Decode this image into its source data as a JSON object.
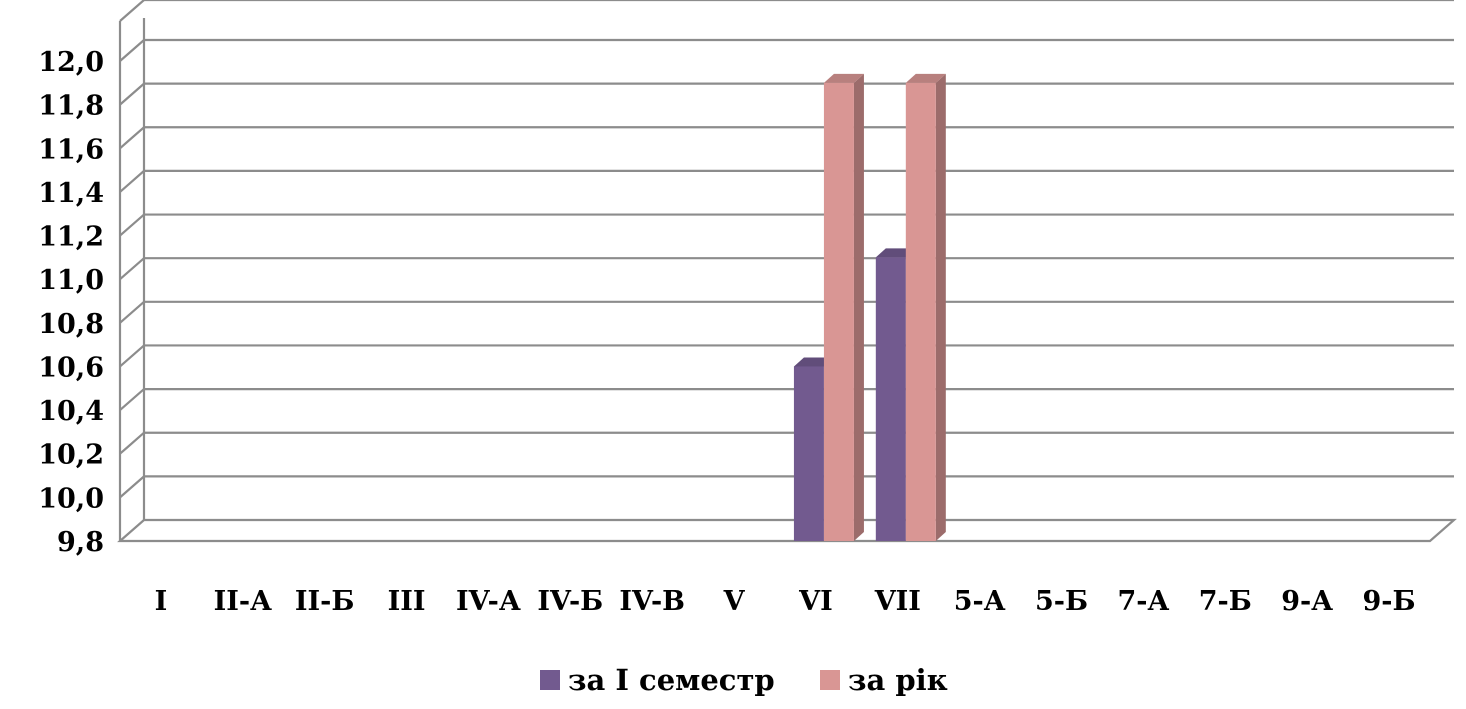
{
  "chart_data": {
    "type": "bar",
    "categories": [
      "I",
      "II-А",
      "II-Б",
      "III",
      "IV-А",
      "IV-Б",
      "IV-В",
      "V",
      "VI",
      "VII",
      "5-А",
      "5-Б",
      "7-А",
      "7-Б",
      "9-А",
      "9-Б"
    ],
    "series": [
      {
        "name": "за І семестр",
        "color": "#725A8F",
        "values": [
          null,
          null,
          null,
          null,
          null,
          null,
          null,
          null,
          10.6,
          11.1,
          null,
          null,
          null,
          null,
          null,
          null
        ]
      },
      {
        "name": "за рік",
        "color": "#D99694",
        "values": [
          null,
          null,
          null,
          null,
          null,
          null,
          null,
          null,
          11.9,
          11.9,
          null,
          null,
          null,
          null,
          null,
          null
        ]
      }
    ],
    "ylim": [
      9.8,
      12.0
    ],
    "yticks": [
      "9,8",
      "10,0",
      "10,2",
      "10,4",
      "10,6",
      "10,8",
      "11,0",
      "11,2",
      "11,4",
      "11,6",
      "11,8",
      "12,0"
    ],
    "grid": true,
    "legend_position": "bottom",
    "style": "3d-clustered-column"
  }
}
